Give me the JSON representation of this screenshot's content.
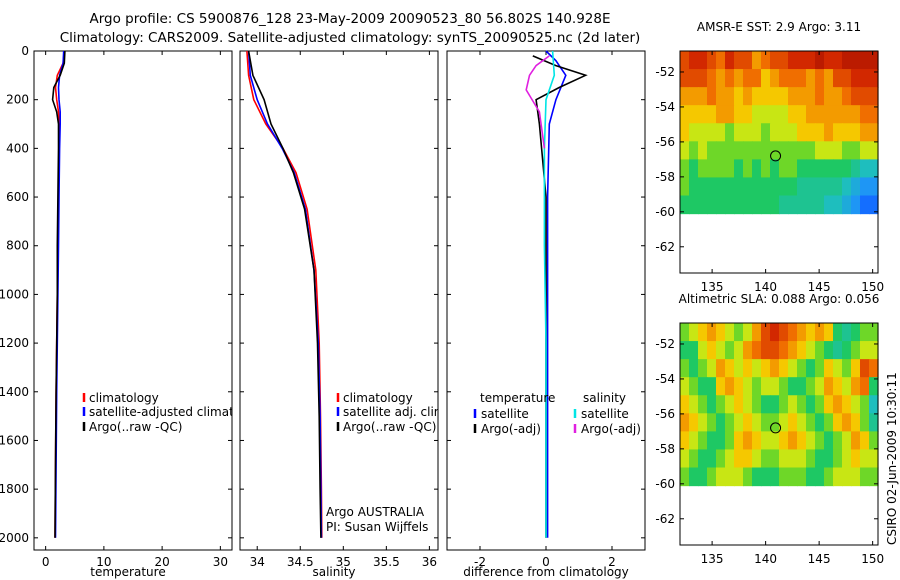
{
  "header": {
    "line1": "Argo profile: CS 5900876_128 23-May-2009 20090523_80 56.802S 140.928E",
    "line2": "Climatology: CARS2009. Satellite-adjusted climatology: synTS_20090525.nc (2d later)"
  },
  "vertical_stamp": "CSIRO 02-Jun-2009 10:30:11",
  "chart_data": [
    {
      "type": "line",
      "panel": "temperature",
      "xlabel": "temperature",
      "ylabel": "",
      "xlim": [
        -2,
        32
      ],
      "ylim": [
        0,
        2050
      ],
      "y_reversed": true,
      "xticks": [
        0,
        10,
        20,
        30
      ],
      "yticks": [
        0,
        200,
        400,
        600,
        800,
        1000,
        1200,
        1400,
        1600,
        1800,
        2000
      ],
      "legend": [
        "climatology",
        "satellite-adjusted climatology",
        "Argo(..raw -QC)"
      ],
      "series": [
        {
          "name": "climatology",
          "color": "#ff0000",
          "x": [
            3.2,
            3.0,
            2.0,
            1.7,
            1.9,
            2.2,
            2.3,
            2.3,
            2.2,
            2.1,
            2.0,
            1.9,
            1.8,
            1.7,
            1.6
          ],
          "y": [
            0,
            50,
            100,
            150,
            200,
            250,
            300,
            400,
            600,
            800,
            1000,
            1200,
            1400,
            1700,
            2000
          ]
        },
        {
          "name": "satellite-adjusted climatology",
          "color": "#0000ff",
          "x": [
            3.1,
            3.0,
            2.4,
            2.2,
            2.3,
            2.5,
            2.5,
            2.4,
            2.3,
            2.2,
            2.1,
            2.0,
            1.9,
            1.8,
            1.7
          ],
          "y": [
            0,
            50,
            100,
            150,
            200,
            250,
            300,
            400,
            600,
            800,
            1000,
            1200,
            1400,
            1700,
            2000
          ]
        },
        {
          "name": "Argo(..raw -QC)",
          "color": "#000000",
          "x": [
            3.3,
            3.2,
            2.5,
            1.4,
            1.2,
            1.9,
            2.2,
            2.2,
            2.1,
            2.0,
            2.0,
            1.9,
            1.8,
            1.7,
            1.6
          ],
          "y": [
            0,
            50,
            100,
            150,
            200,
            250,
            300,
            400,
            600,
            800,
            1000,
            1200,
            1400,
            1700,
            2000
          ]
        }
      ]
    },
    {
      "type": "line",
      "panel": "salinity",
      "xlabel": "salinity",
      "xlim": [
        33.8,
        36.1
      ],
      "ylim": [
        0,
        2050
      ],
      "y_reversed": true,
      "xticks": [
        34,
        34.5,
        35,
        35.5,
        36
      ],
      "yticks": [
        0,
        200,
        400,
        600,
        800,
        1000,
        1200,
        1400,
        1600,
        1800,
        2000
      ],
      "legend": [
        "climatology",
        "satellite adj. clim.",
        "Argo(..raw -QC)"
      ],
      "annotation": [
        "Argo AUSTRALIA",
        "PI: Susan Wijffels"
      ],
      "series": [
        {
          "name": "climatology",
          "color": "#ff0000",
          "x": [
            33.88,
            33.9,
            33.96,
            34.1,
            34.3,
            34.45,
            34.58,
            34.68,
            34.72,
            34.735,
            34.745,
            34.75
          ],
          "y": [
            0,
            100,
            200,
            300,
            400,
            500,
            650,
            900,
            1200,
            1500,
            1800,
            2000
          ]
        },
        {
          "name": "satellite adj. clim.",
          "color": "#0000ff",
          "x": [
            33.9,
            33.92,
            34.0,
            34.12,
            34.29,
            34.43,
            34.56,
            34.66,
            34.71,
            34.73,
            34.74,
            34.745
          ],
          "y": [
            0,
            100,
            200,
            300,
            400,
            500,
            650,
            900,
            1200,
            1500,
            1800,
            2000
          ]
        },
        {
          "name": "Argo(..raw -QC)",
          "color": "#000000",
          "x": [
            33.9,
            33.95,
            34.08,
            34.16,
            34.3,
            34.42,
            34.55,
            34.66,
            34.7,
            34.72,
            34.73,
            34.74
          ],
          "y": [
            0,
            100,
            200,
            300,
            400,
            500,
            650,
            900,
            1200,
            1500,
            1800,
            2000
          ]
        }
      ]
    },
    {
      "type": "line",
      "panel": "difference",
      "xlabel": "difference from climatology",
      "xlim": [
        -3,
        3
      ],
      "ylim": [
        0,
        2050
      ],
      "y_reversed": true,
      "xticks": [
        -2,
        0,
        2
      ],
      "yticks": [
        0,
        200,
        400,
        600,
        800,
        1000,
        1200,
        1400,
        1600,
        1800,
        2000
      ],
      "legend_temperature_header": "temperature",
      "legend_salinity_header": "salinity",
      "legend": [
        "satellite",
        "Argo(-adj)",
        "satellite",
        "Argo(-adj)"
      ],
      "series": [
        {
          "name": "temperature satellite",
          "color": "#0000ff",
          "x": [
            0.0,
            0.3,
            0.6,
            0.3,
            0.1,
            0.05,
            0.05,
            0.05,
            0.05,
            0.05
          ],
          "y": [
            0,
            40,
            100,
            200,
            300,
            600,
            1000,
            1400,
            1800,
            2000
          ]
        },
        {
          "name": "temperature Argo(-adj)",
          "color": "#000000",
          "x": [
            -0.4,
            0.3,
            1.2,
            0.4,
            -0.3,
            -0.2,
            0.0,
            0.0,
            0.0
          ],
          "y": [
            20,
            60,
            100,
            150,
            200,
            300,
            600,
            1200,
            2000
          ]
        },
        {
          "name": "salinity satellite",
          "color": "#00e5e5",
          "x": [
            0.2,
            0.25,
            0.0,
            -0.05,
            -0.05,
            0.0,
            0.0,
            0.0
          ],
          "y": [
            0,
            100,
            200,
            400,
            800,
            1200,
            1600,
            2000
          ]
        },
        {
          "name": "salinity Argo(-adj)",
          "color": "#e020e0",
          "x": [
            0.1,
            -0.3,
            -0.5,
            -0.6,
            -0.2,
            -0.05
          ],
          "y": [
            20,
            60,
            100,
            160,
            250,
            400
          ]
        }
      ]
    },
    {
      "type": "heatmap",
      "panel": "sst-map",
      "title": "AMSR-E SST: 2.9 Argo: 3.11",
      "xlim": [
        132,
        150.5
      ],
      "ylim": [
        -63.5,
        -50.8
      ],
      "xticks": [
        135,
        140,
        145,
        150
      ],
      "yticks": [
        -52,
        -54,
        -56,
        -58,
        -60,
        -62
      ],
      "marker": {
        "lon": 140.928,
        "lat": -56.802
      },
      "data_lat_min": -60.1,
      "grid": [
        [
          4,
          3,
          3,
          4,
          5,
          3,
          4,
          4,
          6,
          5,
          4,
          4,
          3,
          3,
          3,
          2,
          3,
          3,
          2,
          2,
          2,
          2
        ],
        [
          4,
          4,
          4,
          5,
          6,
          5,
          6,
          5,
          5,
          7,
          6,
          5,
          5,
          5,
          6,
          5,
          6,
          4,
          4,
          3,
          3,
          3
        ],
        [
          6,
          6,
          6,
          5,
          6,
          6,
          7,
          6,
          7,
          7,
          7,
          7,
          6,
          6,
          6,
          5,
          6,
          6,
          5,
          4,
          4,
          4
        ],
        [
          7,
          7,
          7,
          7,
          6,
          6,
          7,
          7,
          8,
          8,
          8,
          8,
          7,
          7,
          6,
          6,
          6,
          6,
          6,
          6,
          5,
          5
        ],
        [
          7,
          8,
          8,
          8,
          8,
          9,
          8,
          8,
          8,
          9,
          8,
          8,
          8,
          7,
          7,
          7,
          6,
          7,
          7,
          7,
          6,
          6
        ],
        [
          8,
          9,
          8,
          9,
          9,
          9,
          9,
          9,
          9,
          9,
          9,
          9,
          9,
          9,
          9,
          8,
          8,
          8,
          9,
          9,
          8,
          8
        ],
        [
          9,
          10,
          9,
          9,
          9,
          9,
          10,
          9,
          10,
          9,
          10,
          9,
          9,
          10,
          10,
          10,
          10,
          10,
          10,
          11,
          12,
          12
        ],
        [
          9,
          10,
          10,
          10,
          10,
          10,
          10,
          10,
          10,
          10,
          10,
          10,
          10,
          11,
          11,
          11,
          11,
          11,
          12,
          13,
          14,
          14
        ],
        [
          10,
          10,
          10,
          10,
          10,
          10,
          10,
          10,
          10,
          10,
          10,
          11,
          11,
          11,
          11,
          11,
          12,
          12,
          13,
          14,
          15,
          15
        ]
      ]
    },
    {
      "type": "heatmap",
      "panel": "sla-map",
      "title": "Altimetric SLA: 0.088 Argo: 0.056",
      "xlim": [
        132,
        150.5
      ],
      "ylim": [
        -63.5,
        -50.8
      ],
      "xticks": [
        135,
        140,
        145,
        150
      ],
      "yticks": [
        -52,
        -54,
        -56,
        -58,
        -60,
        -62
      ],
      "marker": {
        "lon": 140.928,
        "lat": -56.802
      },
      "data_lat_min": -60.1,
      "grid": [
        [
          9,
          8,
          7,
          6,
          7,
          8,
          9,
          8,
          6,
          4,
          3,
          4,
          5,
          6,
          7,
          6,
          7,
          10,
          11,
          10,
          9,
          9
        ],
        [
          10,
          10,
          8,
          7,
          8,
          9,
          8,
          6,
          5,
          4,
          4,
          5,
          6,
          7,
          8,
          9,
          10,
          11,
          10,
          9,
          8,
          8
        ],
        [
          9,
          10,
          9,
          8,
          6,
          7,
          8,
          7,
          8,
          7,
          6,
          7,
          8,
          9,
          10,
          9,
          7,
          8,
          9,
          7,
          4,
          5
        ],
        [
          8,
          9,
          10,
          10,
          7,
          6,
          7,
          8,
          9,
          8,
          8,
          9,
          10,
          10,
          9,
          8,
          6,
          7,
          8,
          6,
          5,
          10
        ],
        [
          7,
          8,
          9,
          10,
          9,
          8,
          7,
          8,
          9,
          10,
          10,
          9,
          8,
          9,
          10,
          9,
          7,
          6,
          7,
          8,
          9,
          12
        ],
        [
          6,
          7,
          8,
          9,
          10,
          9,
          8,
          7,
          8,
          9,
          9,
          8,
          7,
          8,
          9,
          10,
          9,
          7,
          6,
          7,
          9,
          11
        ],
        [
          7,
          8,
          9,
          10,
          10,
          9,
          7,
          6,
          7,
          8,
          8,
          7,
          6,
          7,
          8,
          9,
          10,
          9,
          8,
          6,
          7,
          9
        ],
        [
          8,
          9,
          10,
          10,
          9,
          8,
          7,
          7,
          8,
          9,
          9,
          8,
          8,
          8,
          9,
          10,
          10,
          9,
          8,
          7,
          8,
          8
        ],
        [
          9,
          10,
          10,
          9,
          8,
          8,
          8,
          9,
          10,
          10,
          10,
          9,
          9,
          9,
          10,
          10,
          9,
          8,
          8,
          8,
          9,
          9
        ]
      ]
    }
  ]
}
